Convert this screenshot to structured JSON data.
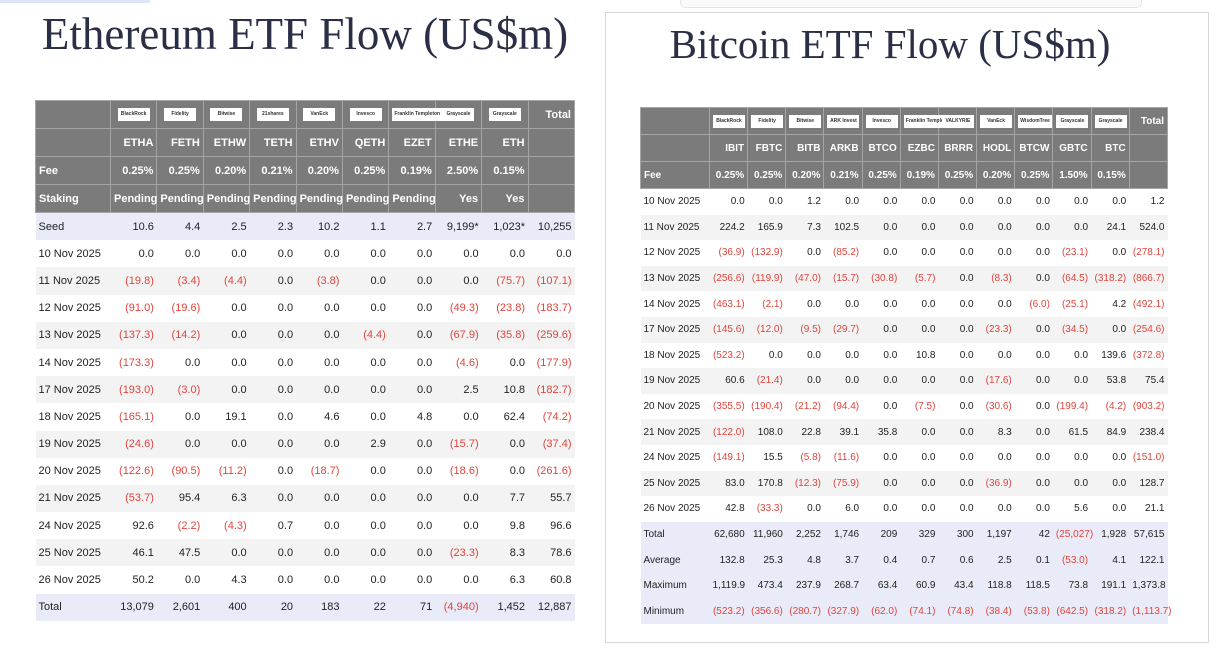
{
  "eth": {
    "title": "Ethereum ETF Flow (US$m)",
    "logos": [
      "BlackRock",
      "Fidelity",
      "Bitwise",
      "21shares",
      "VanEck",
      "Invesco",
      "Franklin Templeton",
      "Grayscale",
      "Grayscale"
    ],
    "total_header": "Total",
    "tickers": [
      "ETHA",
      "FETH",
      "ETHW",
      "TETH",
      "ETHV",
      "QETH",
      "EZET",
      "ETHE",
      "ETH"
    ],
    "fee_label": "Fee",
    "fees": [
      "0.25%",
      "0.25%",
      "0.20%",
      "0.21%",
      "0.20%",
      "0.25%",
      "0.19%",
      "2.50%",
      "0.15%"
    ],
    "staking_label": "Staking",
    "staking": [
      "Pending",
      "Pending",
      "Pending",
      "Pending",
      "Pending",
      "Pending",
      "Pending",
      "Yes",
      "Yes"
    ],
    "rows": [
      {
        "label": "Seed",
        "values": [
          "10.6",
          "4.4",
          "2.5",
          "2.3",
          "10.2",
          "1.1",
          "2.7",
          "9,199*",
          "1,023*",
          "10,255"
        ]
      },
      {
        "label": "10 Nov 2025",
        "values": [
          "0.0",
          "0.0",
          "0.0",
          "0.0",
          "0.0",
          "0.0",
          "0.0",
          "0.0",
          "0.0",
          "0.0"
        ]
      },
      {
        "label": "11 Nov 2025",
        "values": [
          "(19.8)",
          "(3.4)",
          "(4.4)",
          "0.0",
          "(3.8)",
          "0.0",
          "0.0",
          "0.0",
          "(75.7)",
          "(107.1)"
        ]
      },
      {
        "label": "12 Nov 2025",
        "values": [
          "(91.0)",
          "(19.6)",
          "0.0",
          "0.0",
          "0.0",
          "0.0",
          "0.0",
          "(49.3)",
          "(23.8)",
          "(183.7)"
        ]
      },
      {
        "label": "13 Nov 2025",
        "values": [
          "(137.3)",
          "(14.2)",
          "0.0",
          "0.0",
          "0.0",
          "(4.4)",
          "0.0",
          "(67.9)",
          "(35.8)",
          "(259.6)"
        ]
      },
      {
        "label": "14 Nov 2025",
        "values": [
          "(173.3)",
          "0.0",
          "0.0",
          "0.0",
          "0.0",
          "0.0",
          "0.0",
          "(4.6)",
          "0.0",
          "(177.9)"
        ]
      },
      {
        "label": "17 Nov 2025",
        "values": [
          "(193.0)",
          "(3.0)",
          "0.0",
          "0.0",
          "0.0",
          "0.0",
          "0.0",
          "2.5",
          "10.8",
          "(182.7)"
        ]
      },
      {
        "label": "18 Nov 2025",
        "values": [
          "(165.1)",
          "0.0",
          "19.1",
          "0.0",
          "4.6",
          "0.0",
          "4.8",
          "0.0",
          "62.4",
          "(74.2)"
        ]
      },
      {
        "label": "19 Nov 2025",
        "values": [
          "(24.6)",
          "0.0",
          "0.0",
          "0.0",
          "0.0",
          "2.9",
          "0.0",
          "(15.7)",
          "0.0",
          "(37.4)"
        ]
      },
      {
        "label": "20 Nov 2025",
        "values": [
          "(122.6)",
          "(90.5)",
          "(11.2)",
          "0.0",
          "(18.7)",
          "0.0",
          "0.0",
          "(18.6)",
          "0.0",
          "(261.6)"
        ]
      },
      {
        "label": "21 Nov 2025",
        "values": [
          "(53.7)",
          "95.4",
          "6.3",
          "0.0",
          "0.0",
          "0.0",
          "0.0",
          "0.0",
          "7.7",
          "55.7"
        ]
      },
      {
        "label": "24 Nov 2025",
        "values": [
          "92.6",
          "(2.2)",
          "(4.3)",
          "0.7",
          "0.0",
          "0.0",
          "0.0",
          "0.0",
          "9.8",
          "96.6"
        ]
      },
      {
        "label": "25 Nov 2025",
        "values": [
          "46.1",
          "47.5",
          "0.0",
          "0.0",
          "0.0",
          "0.0",
          "0.0",
          "(23.3)",
          "8.3",
          "78.6"
        ]
      },
      {
        "label": "26 Nov 2025",
        "values": [
          "50.2",
          "0.0",
          "4.3",
          "0.0",
          "0.0",
          "0.0",
          "0.0",
          "0.0",
          "6.3",
          "60.8"
        ]
      },
      {
        "label": "Total",
        "values": [
          "13,079",
          "2,601",
          "400",
          "20",
          "183",
          "22",
          "71",
          "(4,940)",
          "1,452",
          "12,887"
        ]
      }
    ]
  },
  "btc": {
    "title": "Bitcoin ETF Flow (US$m)",
    "logos": [
      "BlackRock",
      "Fidelity",
      "Bitwise",
      "ARK Invest",
      "Invesco",
      "Franklin Templeton",
      "VALKYRIE",
      "VanEck",
      "WisdomTree",
      "Grayscale",
      "Grayscale"
    ],
    "total_header": "Total",
    "tickers": [
      "IBIT",
      "FBTC",
      "BITB",
      "ARKB",
      "BTCO",
      "EZBC",
      "BRRR",
      "HODL",
      "BTCW",
      "GBTC",
      "BTC"
    ],
    "fee_label": "Fee",
    "fees": [
      "0.25%",
      "0.25%",
      "0.20%",
      "0.21%",
      "0.25%",
      "0.19%",
      "0.25%",
      "0.20%",
      "0.25%",
      "1.50%",
      "0.15%"
    ],
    "rows": [
      {
        "label": "10 Nov 2025",
        "values": [
          "0.0",
          "0.0",
          "1.2",
          "0.0",
          "0.0",
          "0.0",
          "0.0",
          "0.0",
          "0.0",
          "0.0",
          "0.0",
          "1.2"
        ]
      },
      {
        "label": "11 Nov 2025",
        "values": [
          "224.2",
          "165.9",
          "7.3",
          "102.5",
          "0.0",
          "0.0",
          "0.0",
          "0.0",
          "0.0",
          "0.0",
          "24.1",
          "524.0"
        ]
      },
      {
        "label": "12 Nov 2025",
        "values": [
          "(36.9)",
          "(132.9)",
          "0.0",
          "(85.2)",
          "0.0",
          "0.0",
          "0.0",
          "0.0",
          "0.0",
          "(23.1)",
          "0.0",
          "(278.1)"
        ]
      },
      {
        "label": "13 Nov 2025",
        "values": [
          "(256.6)",
          "(119.9)",
          "(47.0)",
          "(15.7)",
          "(30.8)",
          "(5.7)",
          "0.0",
          "(8.3)",
          "0.0",
          "(64.5)",
          "(318.2)",
          "(866.7)"
        ]
      },
      {
        "label": "14 Nov 2025",
        "values": [
          "(463.1)",
          "(2.1)",
          "0.0",
          "0.0",
          "0.0",
          "0.0",
          "0.0",
          "0.0",
          "(6.0)",
          "(25.1)",
          "4.2",
          "(492.1)"
        ]
      },
      {
        "label": "17 Nov 2025",
        "values": [
          "(145.6)",
          "(12.0)",
          "(9.5)",
          "(29.7)",
          "0.0",
          "0.0",
          "0.0",
          "(23.3)",
          "0.0",
          "(34.5)",
          "0.0",
          "(254.6)"
        ]
      },
      {
        "label": "18 Nov 2025",
        "values": [
          "(523.2)",
          "0.0",
          "0.0",
          "0.0",
          "0.0",
          "10.8",
          "0.0",
          "0.0",
          "0.0",
          "0.0",
          "139.6",
          "(372.8)"
        ]
      },
      {
        "label": "19 Nov 2025",
        "values": [
          "60.6",
          "(21.4)",
          "0.0",
          "0.0",
          "0.0",
          "0.0",
          "0.0",
          "(17.6)",
          "0.0",
          "0.0",
          "53.8",
          "75.4"
        ]
      },
      {
        "label": "20 Nov 2025",
        "values": [
          "(355.5)",
          "(190.4)",
          "(21.2)",
          "(94.4)",
          "0.0",
          "(7.5)",
          "0.0",
          "(30.6)",
          "0.0",
          "(199.4)",
          "(4.2)",
          "(903.2)"
        ]
      },
      {
        "label": "21 Nov 2025",
        "values": [
          "(122.0)",
          "108.0",
          "22.8",
          "39.1",
          "35.8",
          "0.0",
          "0.0",
          "8.3",
          "0.0",
          "61.5",
          "84.9",
          "238.4"
        ]
      },
      {
        "label": "24 Nov 2025",
        "values": [
          "(149.1)",
          "15.5",
          "(5.8)",
          "(11.6)",
          "0.0",
          "0.0",
          "0.0",
          "0.0",
          "0.0",
          "0.0",
          "0.0",
          "(151.0)"
        ]
      },
      {
        "label": "25 Nov 2025",
        "values": [
          "83.0",
          "170.8",
          "(12.3)",
          "(75.9)",
          "0.0",
          "0.0",
          "0.0",
          "(36.9)",
          "0.0",
          "0.0",
          "0.0",
          "128.7"
        ]
      },
      {
        "label": "26 Nov 2025",
        "values": [
          "42.8",
          "(33.3)",
          "0.0",
          "6.0",
          "0.0",
          "0.0",
          "0.0",
          "0.0",
          "0.0",
          "5.6",
          "0.0",
          "21.1"
        ]
      },
      {
        "label": "Total",
        "values": [
          "62,680",
          "11,960",
          "2,252",
          "1,746",
          "209",
          "329",
          "300",
          "1,197",
          "42",
          "(25,027)",
          "1,928",
          "57,615"
        ]
      },
      {
        "label": "Average",
        "values": [
          "132.8",
          "25.3",
          "4.8",
          "3.7",
          "0.4",
          "0.7",
          "0.6",
          "2.5",
          "0.1",
          "(53.0)",
          "4.1",
          "122.1"
        ]
      },
      {
        "label": "Maximum",
        "values": [
          "1,119.9",
          "473.4",
          "237.9",
          "268.7",
          "63.4",
          "60.9",
          "43.4",
          "118.8",
          "118.5",
          "73.8",
          "191.1",
          "1,373.8"
        ]
      },
      {
        "label": "Minimum",
        "values": [
          "(523.2)",
          "(356.6)",
          "(280.7)",
          "(327.9)",
          "(62.0)",
          "(74.1)",
          "(74.8)",
          "(38.4)",
          "(53.8)",
          "(642.5)",
          "(318.2)",
          "(1,113.7)"
        ]
      }
    ]
  },
  "colors": {
    "header": "#7b7b7b",
    "negative": "#e0443c",
    "highlight": "#e9ecf8"
  }
}
